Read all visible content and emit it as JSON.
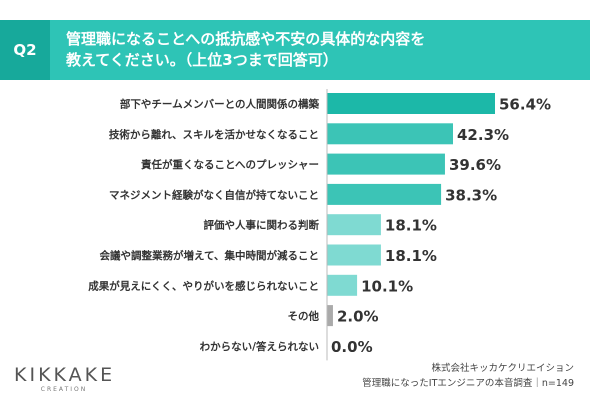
{
  "header": {
    "q_label": "Q2",
    "title_line1": "管理職になることへの抵抗感や不安の具体的な内容を",
    "title_line2": "教えてください。（上位3つまで回答可）"
  },
  "chart_data": {
    "type": "bar",
    "orientation": "horizontal",
    "categories": [
      "部下やチームメンバーとの人間関係の構築",
      "技術から離れ、スキルを活かせなくなること",
      "責任が重くなることへのプレッシャー",
      "マネジメント経験がなく自信が持てないこと",
      "評価や人事に関わる判断",
      "会議や調整業務が増えて、集中時間が減ること",
      "成果が見えにくく、やりがいを感じられないこと",
      "その他",
      "わからない/答えられない"
    ],
    "values": [
      56.4,
      42.3,
      39.6,
      38.3,
      18.1,
      18.1,
      10.1,
      2.0,
      0.0
    ],
    "value_labels": [
      "56.4%",
      "42.3%",
      "39.6%",
      "38.3%",
      "18.1%",
      "18.1%",
      "10.1%",
      "2.0%",
      "0.0%"
    ],
    "bar_colors": [
      "#1cb8a8",
      "#3cc4b6",
      "#3cc4b6",
      "#3cc4b6",
      "#7fdad2",
      "#7fdad2",
      "#7fdad2",
      "#aaaaaa",
      "#aaaaaa"
    ],
    "xlim": [
      0,
      60
    ],
    "grid": false
  },
  "footer": {
    "logo_main": "KIKKAKE",
    "logo_sub": "CREATION",
    "source_line1": "株式会社キッカケクリエイション",
    "source_line2": "管理職になったITエンジニアの本音調査｜n=149"
  }
}
